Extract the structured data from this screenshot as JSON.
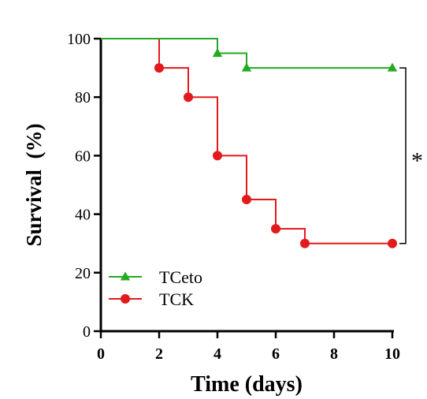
{
  "chart_data": {
    "type": "line",
    "xlabel": "Time (days)",
    "ylabel": "Survival  (%)",
    "xlim": [
      0,
      10
    ],
    "ylim": [
      0,
      100
    ],
    "x_ticks": [
      0,
      2,
      4,
      6,
      8,
      10
    ],
    "y_ticks": [
      0,
      20,
      40,
      60,
      80,
      100
    ],
    "grid": false,
    "legend_position": "bottom-left",
    "series": [
      {
        "name": "TCeto",
        "color": "#22aa22",
        "marker": "triangle",
        "step_x": [
          0,
          4,
          5,
          10
        ],
        "step_y": [
          100,
          95,
          90,
          90
        ],
        "marker_x": [
          4,
          5,
          10
        ],
        "marker_y": [
          95,
          90,
          90
        ]
      },
      {
        "name": "TCK",
        "color": "#e31a1c",
        "marker": "circle",
        "step_x": [
          0,
          2,
          3,
          4,
          5,
          6,
          7,
          10
        ],
        "step_y": [
          100,
          90,
          80,
          60,
          45,
          35,
          30,
          30
        ],
        "marker_x": [
          2,
          3,
          4,
          5,
          6,
          7,
          10
        ],
        "marker_y": [
          90,
          80,
          60,
          45,
          35,
          30,
          30
        ]
      }
    ],
    "annotation": {
      "text": "*",
      "y_range": [
        30,
        90
      ]
    }
  }
}
